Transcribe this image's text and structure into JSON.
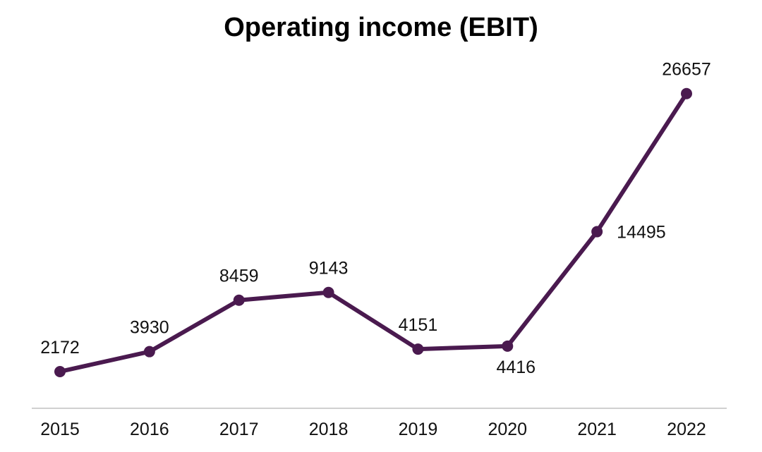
{
  "chart_data": {
    "type": "line",
    "title": "Operating income (EBIT)",
    "categories": [
      "2015",
      "2016",
      "2017",
      "2018",
      "2019",
      "2020",
      "2021",
      "2022"
    ],
    "series": [
      {
        "values": [
          2172,
          3930,
          8459,
          9143,
          4151,
          4416,
          14495,
          26657
        ],
        "color": "#4a1a4f"
      }
    ],
    "ylim": [
      -500,
      29000
    ],
    "grid": false,
    "axis_color": "#d0d0d0"
  }
}
